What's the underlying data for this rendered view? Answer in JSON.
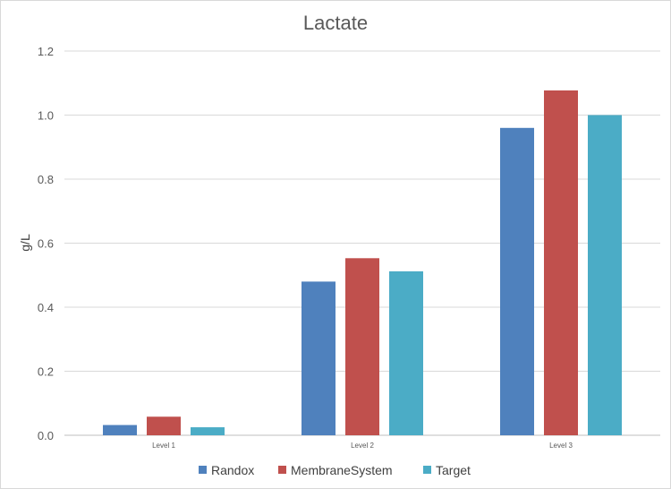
{
  "chart_data": {
    "type": "bar",
    "title": "Lactate",
    "xlabel": "",
    "ylabel": "g/L",
    "categories": [
      "Level 1",
      "Level 2",
      "Level 3"
    ],
    "series": [
      {
        "name": "Randox",
        "values": [
          0.032,
          0.48,
          0.96
        ],
        "color": "#4f81bd"
      },
      {
        "name": "MembraneSystem",
        "values": [
          0.058,
          0.553,
          1.077
        ],
        "color": "#c0504d"
      },
      {
        "name": "Target",
        "values": [
          0.025,
          0.512,
          1.0
        ],
        "color": "#4bacc6"
      }
    ],
    "ylim": [
      0,
      1.2
    ],
    "yticks": [
      "0.0",
      "0.2",
      "0.4",
      "0.6",
      "0.8",
      "1.0",
      "1.2"
    ],
    "grid": true,
    "legend_position": "bottom"
  }
}
